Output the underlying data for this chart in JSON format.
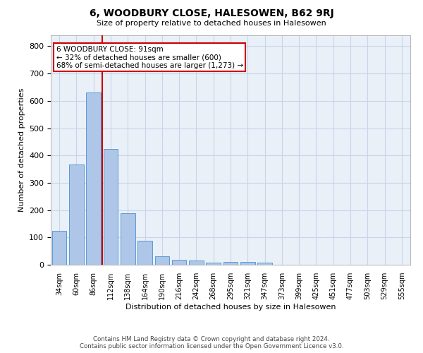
{
  "title": "6, WOODBURY CLOSE, HALESOWEN, B62 9RJ",
  "subtitle": "Size of property relative to detached houses in Halesowen",
  "xlabel": "Distribution of detached houses by size in Halesowen",
  "ylabel": "Number of detached properties",
  "bar_labels": [
    "34sqm",
    "60sqm",
    "86sqm",
    "112sqm",
    "138sqm",
    "164sqm",
    "190sqm",
    "216sqm",
    "242sqm",
    "268sqm",
    "295sqm",
    "321sqm",
    "347sqm",
    "373sqm",
    "399sqm",
    "425sqm",
    "451sqm",
    "477sqm",
    "503sqm",
    "529sqm",
    "555sqm"
  ],
  "bar_values": [
    125,
    367,
    630,
    425,
    188,
    88,
    32,
    17,
    15,
    8,
    10,
    10,
    8,
    0,
    0,
    0,
    0,
    0,
    0,
    0,
    0
  ],
  "bar_color": "#aec6e8",
  "bar_edge_color": "#5b9bd5",
  "ylim": [
    0,
    840
  ],
  "yticks": [
    0,
    100,
    200,
    300,
    400,
    500,
    600,
    700,
    800
  ],
  "grid_color": "#c8d4e8",
  "bg_color": "#eaf0f8",
  "vline_x": 2.5,
  "vline_color": "#cc0000",
  "annotation_text": "6 WOODBURY CLOSE: 91sqm\n← 32% of detached houses are smaller (600)\n68% of semi-detached houses are larger (1,273) →",
  "annotation_box_color": "#cc0000",
  "footer_line1": "Contains HM Land Registry data © Crown copyright and database right 2024.",
  "footer_line2": "Contains public sector information licensed under the Open Government Licence v3.0."
}
